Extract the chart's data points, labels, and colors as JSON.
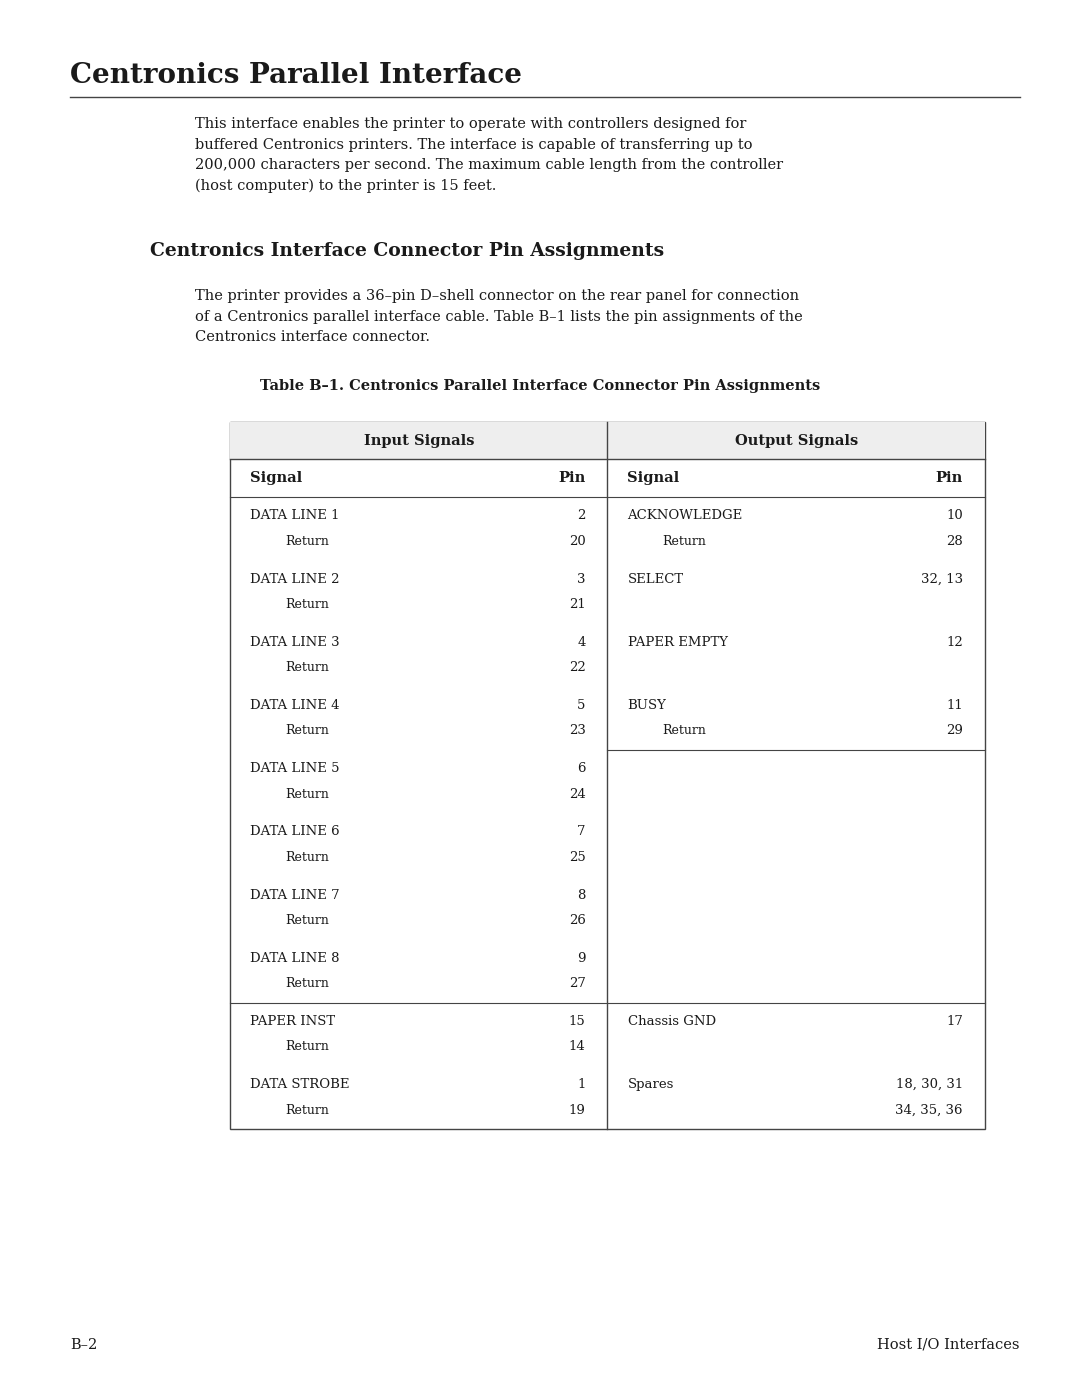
{
  "page_title": "Centronics Parallel Interface",
  "page_subtitle": "Centronics Interface Connector Pin Assignments",
  "body_text": "This interface enables the printer to operate with controllers designed for\nbuffered Centronics printers. The interface is capable of transferring up to\n200,000 characters per second. The maximum cable length from the controller\n(host computer) to the printer is 15 feet.",
  "sub_body_text": "The printer provides a 36–pin D–shell connector on the rear panel for connection\nof a Centronics parallel interface cable. Table B–1 lists the pin assignments of the\nCentronics interface connector.",
  "table_caption": "Table B–1. Centronics Parallel Interface Connector Pin Assignments",
  "col_header_1": "Input Signals",
  "col_header_2": "Output Signals",
  "subheader_signal_1": "Signal",
  "subheader_pin_1": "Pin",
  "subheader_signal_2": "Signal",
  "subheader_pin_2": "Pin",
  "input_rows": [
    {
      "signal": "DATA LINE 1",
      "pin": "2",
      "return": "Return",
      "rpin": "20"
    },
    {
      "signal": "DATA LINE 2",
      "pin": "3",
      "return": "Return",
      "rpin": "21"
    },
    {
      "signal": "DATA LINE 3",
      "pin": "4",
      "return": "Return",
      "rpin": "22"
    },
    {
      "signal": "DATA LINE 4",
      "pin": "5",
      "return": "Return",
      "rpin": "23"
    },
    {
      "signal": "DATA LINE 5",
      "pin": "6",
      "return": "Return",
      "rpin": "24"
    },
    {
      "signal": "DATA LINE 6",
      "pin": "7",
      "return": "Return",
      "rpin": "25"
    },
    {
      "signal": "DATA LINE 7",
      "pin": "8",
      "return": "Return",
      "rpin": "26"
    },
    {
      "signal": "DATA LINE 8",
      "pin": "9",
      "return": "Return",
      "rpin": "27"
    },
    {
      "signal": "PAPER INST",
      "pin": "15",
      "return": "Return",
      "rpin": "14"
    },
    {
      "signal": "DATA STROBE",
      "pin": "1",
      "return": "Return",
      "rpin": "19"
    }
  ],
  "output_rows": [
    {
      "signal": "ACKNOWLEDGE",
      "pin": "10",
      "return": "Return",
      "rpin": "28"
    },
    {
      "signal": "SELECT",
      "pin": "32, 13",
      "return": "",
      "rpin": ""
    },
    {
      "signal": "PAPER EMPTY",
      "pin": "12",
      "return": "",
      "rpin": ""
    },
    {
      "signal": "BUSY",
      "pin": "11",
      "return": "Return",
      "rpin": "29"
    },
    {
      "signal": "",
      "pin": "",
      "return": "",
      "rpin": ""
    },
    {
      "signal": "",
      "pin": "",
      "return": "",
      "rpin": ""
    },
    {
      "signal": "",
      "pin": "",
      "return": "",
      "rpin": ""
    },
    {
      "signal": "",
      "pin": "",
      "return": "",
      "rpin": ""
    },
    {
      "signal": "Chassis GND",
      "pin": "17",
      "return": "",
      "rpin": ""
    },
    {
      "signal": "Spares",
      "pin_line1": "18, 30, 31",
      "pin_line2": "34, 35, 36",
      "return": "",
      "rpin": ""
    }
  ],
  "footer_left": "B–2",
  "footer_right": "Host I/O Interfaces",
  "bg_color": "#ffffff",
  "text_color": "#1a1a1a",
  "line_color": "#444444"
}
